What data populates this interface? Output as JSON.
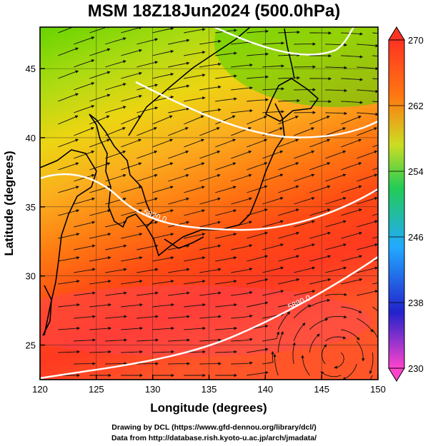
{
  "title": "MSM 18Z18Jun2024 (500.0hPa)",
  "map": {
    "xlabel": "Longitude (degrees)",
    "ylabel": "Latitude  (degrees)",
    "lon_range": [
      120,
      150
    ],
    "lat_range": [
      22.5,
      48
    ],
    "lon_ticks": [
      "120",
      "125",
      "130",
      "135",
      "140",
      "145",
      "150"
    ],
    "lat_ticks": [
      "25",
      "30",
      "35",
      "40",
      "45"
    ],
    "contour_labels": [
      "5820.0",
      "5880.0"
    ]
  },
  "colorbar": {
    "labels": [
      "270",
      "262",
      "254",
      "246",
      "238",
      "230"
    ],
    "min": 230,
    "max": 270,
    "colors": [
      "#ff44cc",
      "#2222cc",
      "#22aaff",
      "#22cc55",
      "#ccdd22",
      "#ff7711",
      "#ff3322"
    ]
  },
  "credits": {
    "line1": "Drawing by DCL (https://www.gfd-dennou.org/library/dcl/)",
    "line2": "Data from http://database.rish.kyoto-u.ac.jp/arch/jmadata/"
  }
}
